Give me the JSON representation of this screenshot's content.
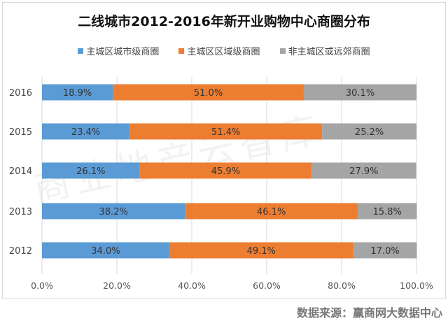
{
  "chart_data": {
    "type": "bar",
    "orientation": "horizontal",
    "stacked": "percent",
    "title": "二线城市2012-2016年新开业购物中心商圈分布",
    "categories": [
      "2016",
      "2015",
      "2014",
      "2013",
      "2012"
    ],
    "series": [
      {
        "name": "主城区城市级商圈",
        "color": "#5B9BD5",
        "values": [
          18.9,
          23.4,
          26.1,
          38.2,
          34.0
        ],
        "labels": [
          "18.9%",
          "23.4%",
          "26.1%",
          "38.2%",
          "34.0%"
        ]
      },
      {
        "name": "主城区区域级商圈",
        "color": "#ED7D31",
        "values": [
          51.0,
          51.4,
          45.9,
          46.1,
          49.1
        ],
        "labels": [
          "51.0%",
          "51.4%",
          "45.9%",
          "46.1%",
          "49.1%"
        ]
      },
      {
        "name": "非主城区或远郊商圈",
        "color": "#A5A5A5",
        "values": [
          30.1,
          25.2,
          27.9,
          15.8,
          17.0
        ],
        "labels": [
          "30.1%",
          "25.2%",
          "27.9%",
          "15.8%",
          "17.0%"
        ]
      }
    ],
    "xlim": [
      0,
      100
    ],
    "xticks": [
      "0.0%",
      "20.0%",
      "40.0%",
      "60.0%",
      "80.0%",
      "100.0%"
    ],
    "grid": true,
    "legend": "top"
  },
  "source": "数据来源：赢商网大数据中心",
  "watermark": "商业地产云智库"
}
